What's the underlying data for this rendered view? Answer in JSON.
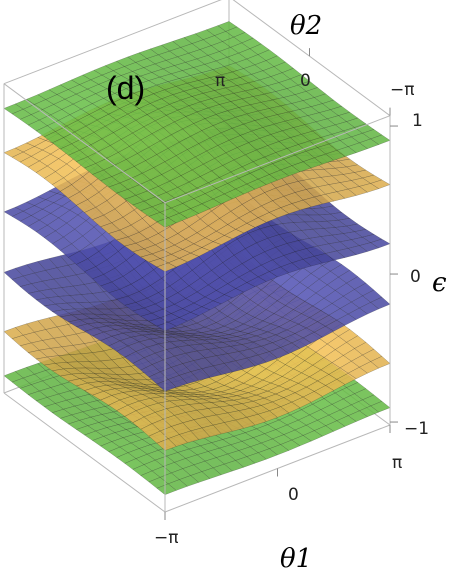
{
  "panel_label": "(d)",
  "colors": {
    "green": "#6cc84a",
    "gold": "#f2bf55",
    "blue": "#4f4fae",
    "mesh": "#1a1a1a",
    "box": "#b8b8b8"
  },
  "chart_data": {
    "type": "surface3d",
    "title": "",
    "axes": {
      "theta1": {
        "label": "θ1",
        "range": [
          -3.1416,
          3.1416
        ],
        "ticks": [
          "−π",
          "0",
          "π"
        ]
      },
      "theta2": {
        "label": "θ2",
        "range": [
          -3.1416,
          3.1416
        ],
        "ticks": [
          "π",
          "0",
          "−π"
        ]
      },
      "epsilon": {
        "label": "ϵ",
        "range": [
          -1,
          1
        ],
        "ticks": [
          "1",
          "0",
          "−1"
        ]
      }
    },
    "grid": false,
    "series": [
      {
        "color": "green",
        "mean": -0.93,
        "amplitude": 0.05
      },
      {
        "color": "gold",
        "mean": -0.68,
        "amplitude": 0.14
      },
      {
        "color": "blue",
        "mean": -0.28,
        "amplitude": 0.14
      },
      {
        "color": "blue",
        "mean": 0.28,
        "amplitude": 0.14
      },
      {
        "color": "gold",
        "mean": 0.68,
        "amplitude": 0.14
      },
      {
        "color": "green",
        "mean": 0.93,
        "amplitude": 0.05
      }
    ]
  }
}
